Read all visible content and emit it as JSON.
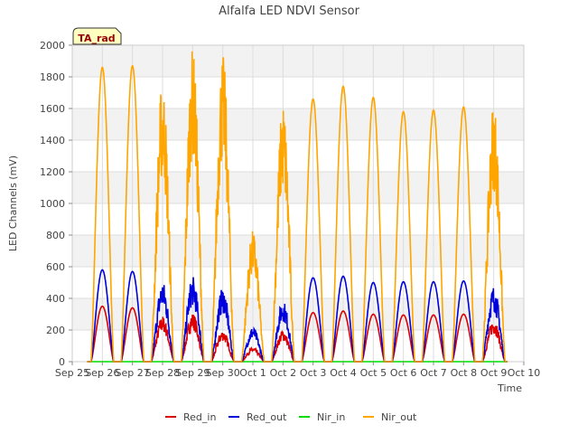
{
  "chart_data": {
    "type": "line",
    "title": "Alfalfa LED NDVI Sensor",
    "xlabel": "Time",
    "ylabel": "LED Channels (mV)",
    "ylim": [
      0,
      2000
    ],
    "yticks": [
      0,
      200,
      400,
      600,
      800,
      1000,
      1200,
      1400,
      1600,
      1800,
      2000
    ],
    "xlim": [
      0,
      15
    ],
    "xticks": [
      "Sep 25",
      "Sep 26",
      "Sep 27",
      "Sep 28",
      "Sep 29",
      "Sep 30",
      "Oct 1",
      "Oct 2",
      "Oct 3",
      "Oct 4",
      "Oct 5",
      "Oct 6",
      "Oct 7",
      "Oct 8",
      "Oct 9",
      "Oct 10"
    ],
    "annotation": "TA_rad",
    "legend_position": "bottom",
    "grid": true,
    "series": [
      {
        "name": "Red_in",
        "color": "#dd0000",
        "peaks": [
          350,
          340,
          290,
          310,
          200,
          90,
          200,
          310,
          320,
          300,
          295,
          295,
          300,
          270
        ]
      },
      {
        "name": "Red_out",
        "color": "#0000dd",
        "peaks": [
          580,
          570,
          510,
          540,
          470,
          220,
          390,
          530,
          540,
          500,
          505,
          505,
          510,
          480
        ]
      },
      {
        "name": "Nir_in",
        "color": "#00dd00",
        "peaks": [
          0,
          0,
          0,
          0,
          0,
          0,
          0,
          0,
          0,
          0,
          0,
          0,
          0,
          0
        ]
      },
      {
        "name": "Nir_out",
        "color": "#ffa500",
        "peaks": [
          1860,
          1870,
          1790,
          1980,
          1950,
          830,
          1650,
          1660,
          1740,
          1670,
          1580,
          1590,
          1610,
          1660
        ]
      }
    ]
  }
}
